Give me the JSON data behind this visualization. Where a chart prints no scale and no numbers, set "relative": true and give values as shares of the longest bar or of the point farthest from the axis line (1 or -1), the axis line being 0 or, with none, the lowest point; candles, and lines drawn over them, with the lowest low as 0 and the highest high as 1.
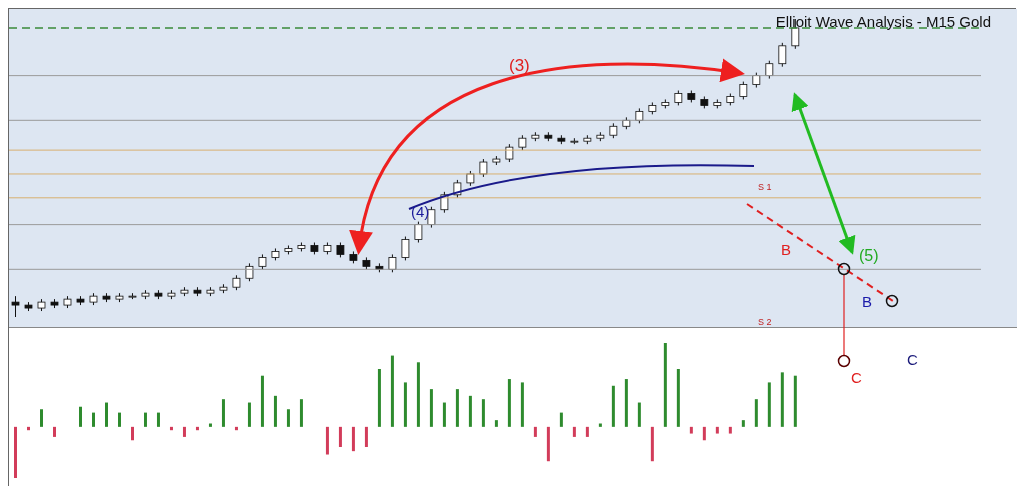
{
  "chart_data": [
    {
      "type": "candlestick",
      "title": "Ellioit Wave Analysis - M15 Gold",
      "relative": true,
      "tick_labels": false,
      "categories": [
        null,
        null,
        null,
        null,
        null,
        null,
        null,
        null,
        null,
        null,
        null,
        null,
        null,
        null,
        null,
        null,
        null,
        null,
        null,
        null,
        null,
        null,
        null,
        null,
        null,
        null,
        null,
        null,
        null,
        null,
        null,
        null,
        null,
        null,
        null,
        null,
        null,
        null,
        null,
        null,
        null,
        null,
        null,
        null,
        null,
        null,
        null,
        null,
        null,
        null,
        null,
        null,
        null,
        null,
        null,
        null,
        null,
        null,
        null,
        null,
        null
      ],
      "ohlc": [
        [
          0.05,
          0.07,
          0,
          0.04
        ],
        [
          0.04,
          0.05,
          0.02,
          0.03
        ],
        [
          0.03,
          0.06,
          0.02,
          0.05
        ],
        [
          0.05,
          0.06,
          0.03,
          0.04
        ],
        [
          0.04,
          0.07,
          0.03,
          0.06
        ],
        [
          0.06,
          0.07,
          0.04,
          0.05
        ],
        [
          0.05,
          0.08,
          0.04,
          0.07
        ],
        [
          0.07,
          0.08,
          0.05,
          0.06
        ],
        [
          0.06,
          0.08,
          0.05,
          0.07
        ],
        [
          0.07,
          0.08,
          0.06,
          0.07
        ],
        [
          0.07,
          0.09,
          0.06,
          0.08
        ],
        [
          0.08,
          0.09,
          0.06,
          0.07
        ],
        [
          0.07,
          0.09,
          0.06,
          0.08
        ],
        [
          0.08,
          0.1,
          0.07,
          0.09
        ],
        [
          0.09,
          0.1,
          0.07,
          0.08
        ],
        [
          0.08,
          0.1,
          0.07,
          0.09
        ],
        [
          0.09,
          0.11,
          0.08,
          0.1
        ],
        [
          0.1,
          0.14,
          0.09,
          0.13
        ],
        [
          0.13,
          0.18,
          0.12,
          0.17
        ],
        [
          0.17,
          0.21,
          0.16,
          0.2
        ],
        [
          0.2,
          0.23,
          0.19,
          0.22
        ],
        [
          0.22,
          0.24,
          0.21,
          0.23
        ],
        [
          0.23,
          0.25,
          0.22,
          0.24
        ],
        [
          0.24,
          0.25,
          0.21,
          0.22
        ],
        [
          0.22,
          0.25,
          0.21,
          0.24
        ],
        [
          0.24,
          0.25,
          0.2,
          0.21
        ],
        [
          0.21,
          0.22,
          0.18,
          0.19
        ],
        [
          0.19,
          0.2,
          0.16,
          0.17
        ],
        [
          0.17,
          0.18,
          0.15,
          0.16
        ],
        [
          0.16,
          0.21,
          0.15,
          0.2
        ],
        [
          0.2,
          0.27,
          0.19,
          0.26
        ],
        [
          0.26,
          0.32,
          0.25,
          0.31
        ],
        [
          0.31,
          0.37,
          0.3,
          0.36
        ],
        [
          0.36,
          0.42,
          0.35,
          0.41
        ],
        [
          0.41,
          0.46,
          0.4,
          0.45
        ],
        [
          0.45,
          0.49,
          0.44,
          0.48
        ],
        [
          0.48,
          0.53,
          0.47,
          0.52
        ],
        [
          0.52,
          0.54,
          0.51,
          0.53
        ],
        [
          0.53,
          0.58,
          0.52,
          0.57
        ],
        [
          0.57,
          0.61,
          0.56,
          0.6
        ],
        [
          0.6,
          0.62,
          0.59,
          0.61
        ],
        [
          0.61,
          0.62,
          0.59,
          0.6
        ],
        [
          0.6,
          0.61,
          0.58,
          0.59
        ],
        [
          0.59,
          0.6,
          0.58,
          0.59
        ],
        [
          0.59,
          0.61,
          0.58,
          0.6
        ],
        [
          0.6,
          0.62,
          0.59,
          0.61
        ],
        [
          0.61,
          0.65,
          0.6,
          0.64
        ],
        [
          0.64,
          0.67,
          0.63,
          0.66
        ],
        [
          0.66,
          0.7,
          0.65,
          0.69
        ],
        [
          0.69,
          0.72,
          0.68,
          0.71
        ],
        [
          0.71,
          0.73,
          0.7,
          0.72
        ],
        [
          0.72,
          0.76,
          0.71,
          0.75
        ],
        [
          0.75,
          0.76,
          0.72,
          0.73
        ],
        [
          0.73,
          0.74,
          0.7,
          0.71
        ],
        [
          0.71,
          0.73,
          0.7,
          0.72
        ],
        [
          0.72,
          0.75,
          0.71,
          0.74
        ],
        [
          0.74,
          0.79,
          0.73,
          0.78
        ],
        [
          0.78,
          0.82,
          0.77,
          0.81
        ],
        [
          0.81,
          0.86,
          0.8,
          0.85
        ],
        [
          0.85,
          0.92,
          0.84,
          0.91
        ],
        [
          0.91,
          1.0,
          0.9,
          0.97
        ]
      ],
      "ref_lines": [
        {
          "axis": "y",
          "value": 0.97,
          "color": "#3a8a3a",
          "line_style": "dashed"
        },
        {
          "axis": "y",
          "value": 0.81,
          "color": "#9a9a9a",
          "line_style": "solid"
        },
        {
          "axis": "y",
          "value": 0.66,
          "color": "#9a9a9a",
          "line_style": "solid"
        },
        {
          "axis": "y",
          "value": 0.56,
          "color": "#d8b070",
          "line_style": "solid"
        },
        {
          "axis": "y",
          "value": 0.48,
          "color": "#d8b070",
          "line_style": "solid"
        },
        {
          "axis": "y",
          "value": 0.4,
          "color": "#d8b070",
          "line_style": "solid"
        },
        {
          "axis": "y",
          "value": 0.31,
          "color": "#9a9a9a",
          "line_style": "solid"
        },
        {
          "axis": "y",
          "value": 0.16,
          "color": "#9a9a9a",
          "line_style": "solid"
        }
      ],
      "annotations": [
        "(3)",
        "(4)",
        "(5)",
        "B",
        "B",
        "C",
        "C",
        "S 1",
        "S 2"
      ]
    },
    {
      "type": "bar",
      "relative": true,
      "tick_labels": false,
      "categories": [
        null,
        null,
        null,
        null,
        null,
        null,
        null,
        null,
        null,
        null,
        null,
        null,
        null,
        null,
        null,
        null,
        null,
        null,
        null,
        null,
        null,
        null,
        null,
        null,
        null,
        null,
        null,
        null,
        null,
        null,
        null,
        null,
        null,
        null,
        null,
        null,
        null,
        null,
        null,
        null,
        null,
        null,
        null,
        null,
        null,
        null,
        null,
        null,
        null,
        null,
        null,
        null,
        null,
        null,
        null,
        null,
        null,
        null,
        null,
        null,
        null
      ],
      "values": [
        -0.61,
        -0.04,
        0.21,
        -0.12,
        0,
        0.24,
        0.17,
        0.29,
        0.17,
        -0.16,
        0.17,
        0.17,
        -0.04,
        -0.12,
        -0.04,
        0.04,
        0.33,
        -0.04,
        0.29,
        0.61,
        0.37,
        0.21,
        0.33,
        0,
        -0.33,
        -0.24,
        -0.29,
        -0.24,
        0.69,
        0.85,
        0.53,
        0.77,
        0.45,
        0.29,
        0.45,
        0.37,
        0.33,
        0.08,
        0.57,
        0.53,
        -0.12,
        -0.41,
        0.17,
        -0.12,
        -0.12,
        0.04,
        0.49,
        0.57,
        0.29,
        -0.41,
        1,
        0.69,
        -0.08,
        -0.16,
        -0.08,
        -0.08,
        0.08,
        0.33,
        0.53,
        0.65,
        0.61
      ],
      "colors": [
        "#d23c5a",
        "#d23c5a",
        "#2e8b2e",
        "#d23c5a",
        "#2e8b2e",
        "#2e8b2e",
        "#2e8b2e",
        "#2e8b2e",
        "#2e8b2e",
        "#d23c5a",
        "#2e8b2e",
        "#2e8b2e",
        "#d23c5a",
        "#d23c5a",
        "#d23c5a",
        "#2e8b2e",
        "#2e8b2e",
        "#d23c5a",
        "#2e8b2e",
        "#2e8b2e",
        "#2e8b2e",
        "#2e8b2e",
        "#2e8b2e",
        "#2e8b2e",
        "#d23c5a",
        "#d23c5a",
        "#d23c5a",
        "#d23c5a",
        "#2e8b2e",
        "#2e8b2e",
        "#2e8b2e",
        "#2e8b2e",
        "#2e8b2e",
        "#2e8b2e",
        "#2e8b2e",
        "#2e8b2e",
        "#2e8b2e",
        "#2e8b2e",
        "#2e8b2e",
        "#2e8b2e",
        "#d23c5a",
        "#d23c5a",
        "#2e8b2e",
        "#d23c5a",
        "#d23c5a",
        "#2e8b2e",
        "#2e8b2e",
        "#2e8b2e",
        "#2e8b2e",
        "#d23c5a",
        "#2e8b2e",
        "#2e8b2e",
        "#d23c5a",
        "#d23c5a",
        "#d23c5a",
        "#d23c5a",
        "#2e8b2e",
        "#2e8b2e",
        "#2e8b2e",
        "#2e8b2e",
        "#2e8b2e"
      ]
    }
  ]
}
